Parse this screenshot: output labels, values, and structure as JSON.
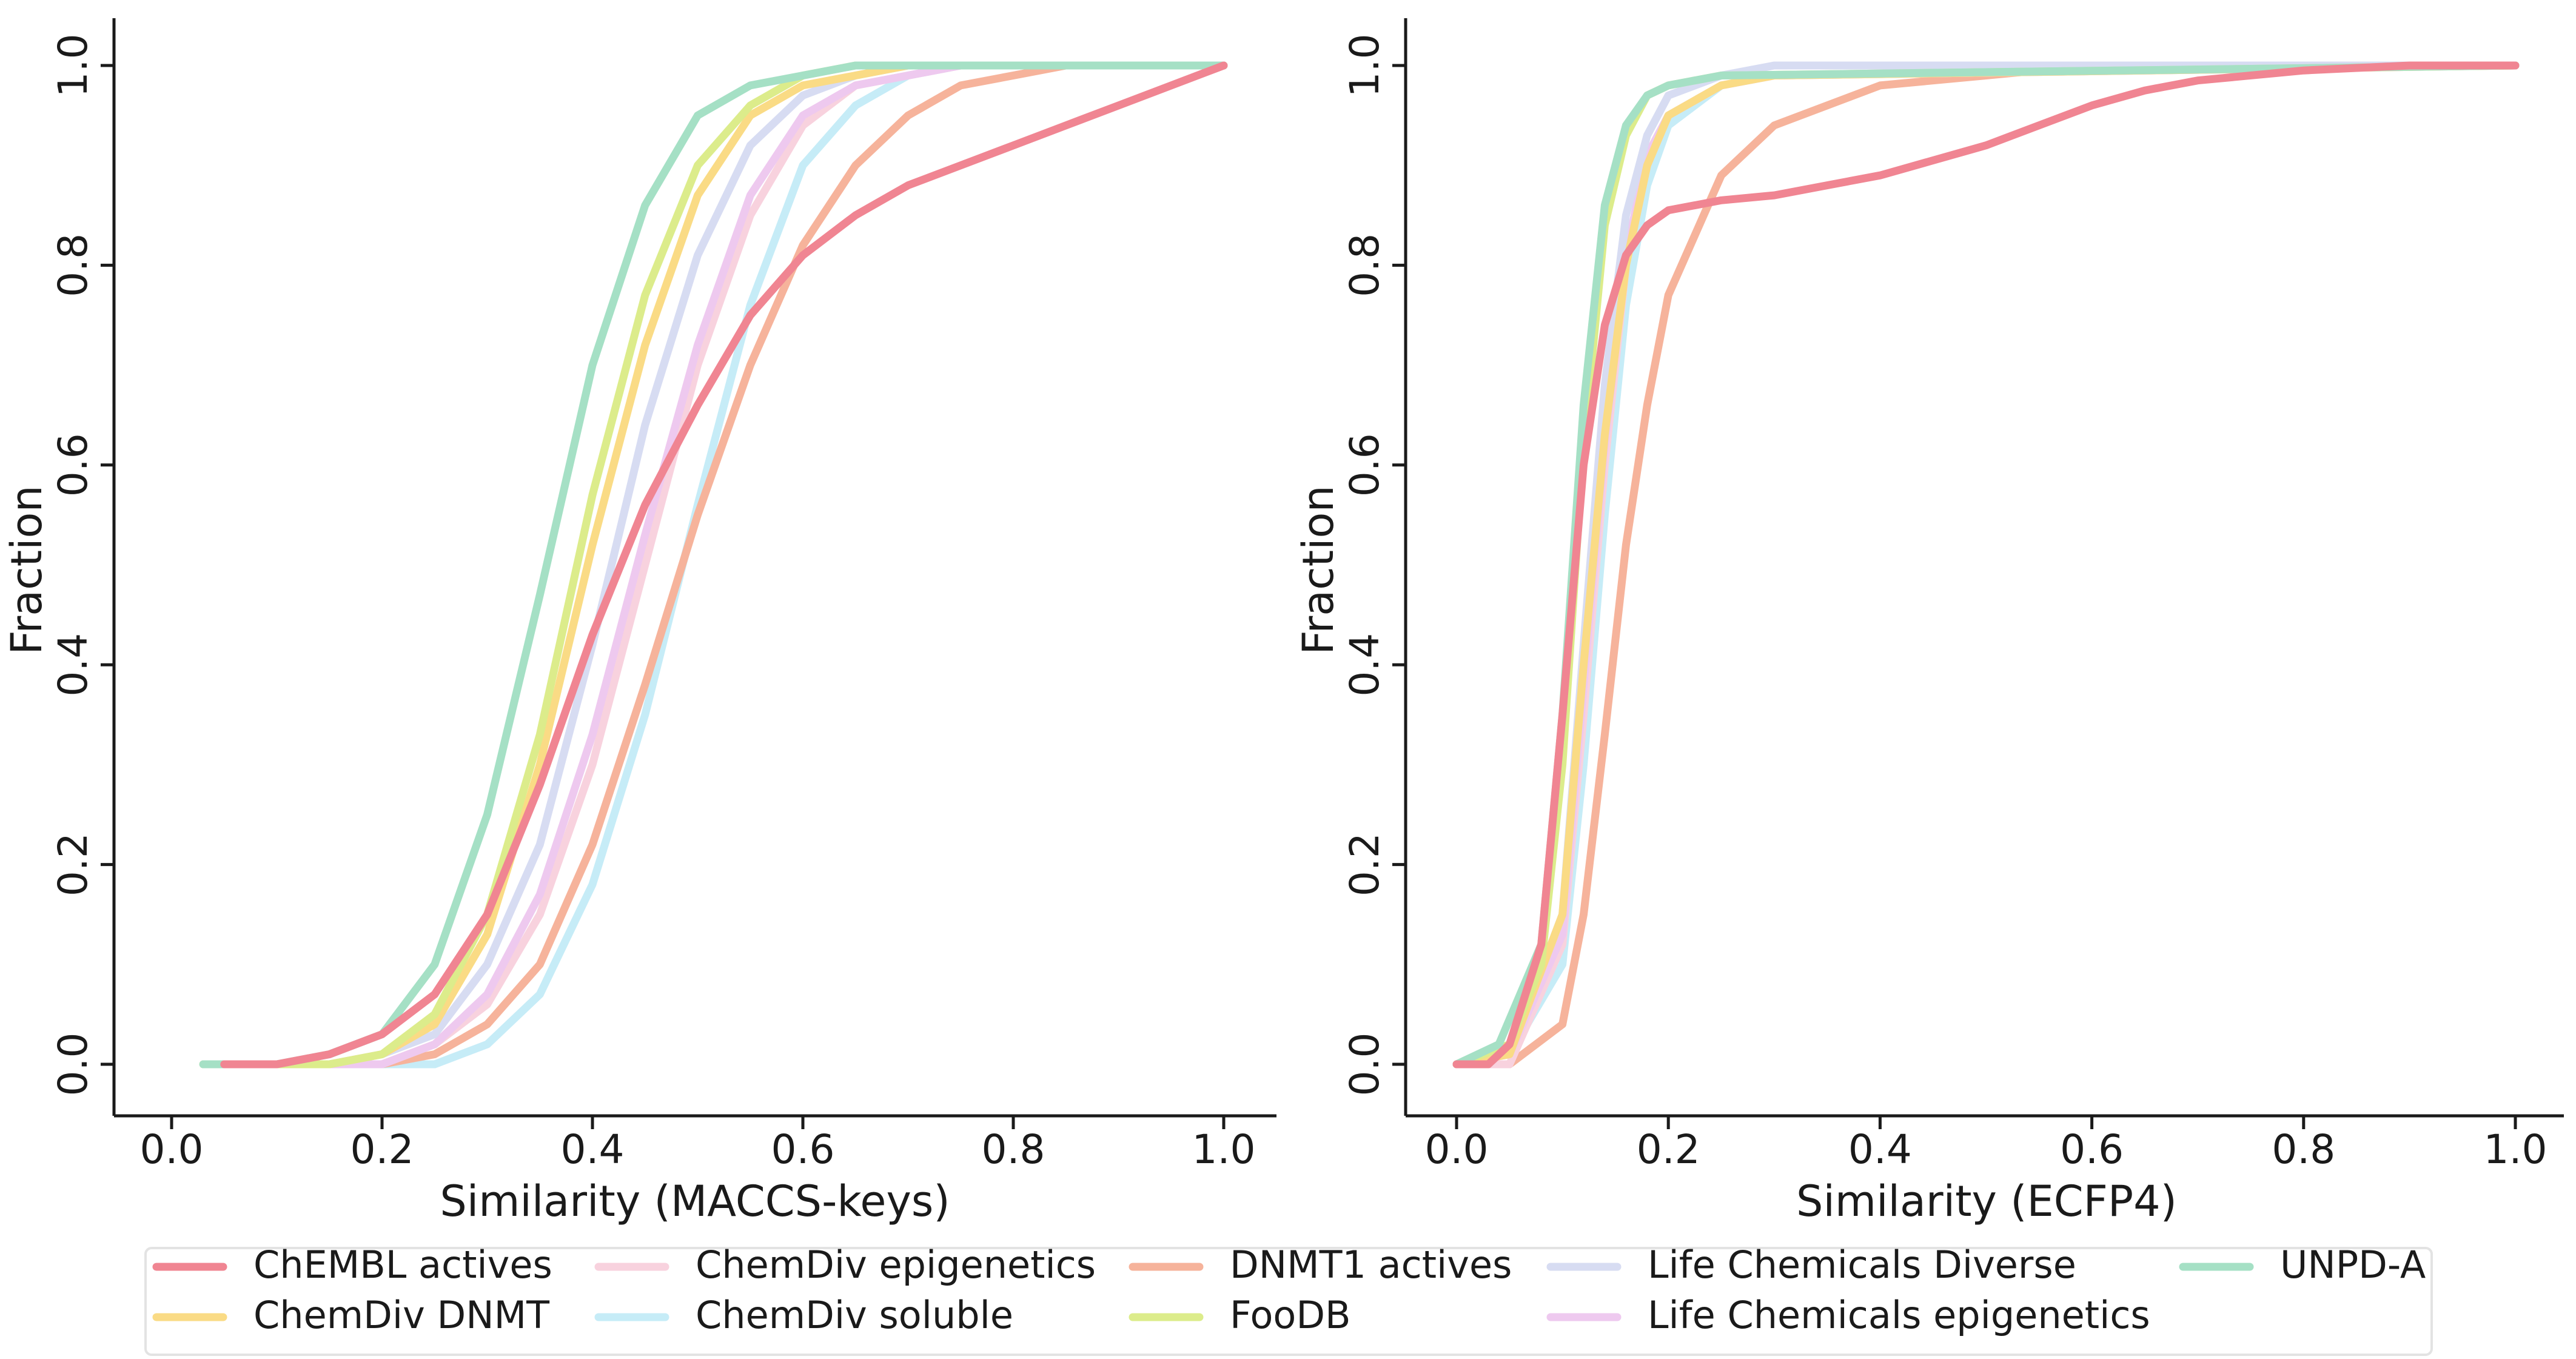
{
  "chart_data": [
    {
      "type": "line",
      "title": "",
      "xlabel": "Similarity (MACCS-keys)",
      "ylabel": "Fraction",
      "xlim": [
        0.0,
        1.0
      ],
      "ylim": [
        0.0,
        1.0
      ],
      "xticks": [
        "0.0",
        "0.2",
        "0.4",
        "0.6",
        "0.8",
        "1.0"
      ],
      "yticks": [
        "0.0",
        "0.2",
        "0.4",
        "0.6",
        "0.8",
        "1.0"
      ],
      "grid": false,
      "series": [
        {
          "name": "ChemDiv soluble",
          "color": "#c6ecf7",
          "x": [
            0.15,
            0.25,
            0.3,
            0.35,
            0.4,
            0.45,
            0.5,
            0.55,
            0.6,
            0.65,
            0.7,
            0.75,
            0.8,
            1.0
          ],
          "y": [
            0.0,
            0.0,
            0.02,
            0.07,
            0.18,
            0.35,
            0.56,
            0.76,
            0.9,
            0.96,
            0.99,
            1.0,
            1.0,
            1.0
          ]
        },
        {
          "name": "DNMT1 actives",
          "color": "#f6b39b",
          "x": [
            0.15,
            0.2,
            0.25,
            0.3,
            0.35,
            0.4,
            0.45,
            0.5,
            0.55,
            0.6,
            0.65,
            0.7,
            0.75,
            0.8,
            0.85,
            1.0
          ],
          "y": [
            0.0,
            0.0,
            0.01,
            0.04,
            0.1,
            0.22,
            0.38,
            0.55,
            0.7,
            0.82,
            0.9,
            0.95,
            0.98,
            0.99,
            1.0,
            1.0
          ]
        },
        {
          "name": "ChemDiv epigenetics",
          "color": "#f8d2de",
          "x": [
            0.15,
            0.2,
            0.25,
            0.3,
            0.35,
            0.4,
            0.45,
            0.5,
            0.55,
            0.6,
            0.65,
            0.7,
            0.75,
            1.0
          ],
          "y": [
            0.0,
            0.0,
            0.02,
            0.06,
            0.15,
            0.3,
            0.5,
            0.7,
            0.85,
            0.94,
            0.98,
            0.99,
            1.0,
            1.0
          ]
        },
        {
          "name": "Life Chemicals epigenetics",
          "color": "#eec9ef",
          "x": [
            0.15,
            0.2,
            0.25,
            0.3,
            0.35,
            0.4,
            0.45,
            0.5,
            0.55,
            0.6,
            0.65,
            0.7,
            0.75,
            1.0
          ],
          "y": [
            0.0,
            0.0,
            0.02,
            0.07,
            0.17,
            0.33,
            0.53,
            0.72,
            0.87,
            0.95,
            0.98,
            0.99,
            1.0,
            1.0
          ]
        },
        {
          "name": "Life Chemicals Diverse",
          "color": "#d7dcf2",
          "x": [
            0.15,
            0.2,
            0.25,
            0.3,
            0.35,
            0.4,
            0.45,
            0.5,
            0.55,
            0.6,
            0.65,
            0.7,
            1.0
          ],
          "y": [
            0.0,
            0.01,
            0.03,
            0.1,
            0.22,
            0.42,
            0.64,
            0.81,
            0.92,
            0.97,
            0.99,
            1.0,
            1.0
          ]
        },
        {
          "name": "ChemDiv DNMT",
          "color": "#fadb85",
          "x": [
            0.15,
            0.2,
            0.25,
            0.3,
            0.35,
            0.4,
            0.45,
            0.5,
            0.55,
            0.6,
            0.65,
            0.7,
            1.0
          ],
          "y": [
            0.0,
            0.01,
            0.04,
            0.13,
            0.3,
            0.52,
            0.72,
            0.87,
            0.95,
            0.98,
            0.99,
            1.0,
            1.0
          ]
        },
        {
          "name": "FooDB",
          "color": "#dcec8b",
          "x": [
            0.03,
            0.15,
            0.2,
            0.25,
            0.3,
            0.35,
            0.4,
            0.45,
            0.5,
            0.55,
            0.6,
            0.65,
            0.7,
            1.0
          ],
          "y": [
            0.0,
            0.0,
            0.01,
            0.05,
            0.15,
            0.33,
            0.57,
            0.77,
            0.9,
            0.96,
            0.99,
            1.0,
            1.0,
            1.0
          ]
        },
        {
          "name": "UNPD-A",
          "color": "#a5e0c5",
          "x": [
            0.03,
            0.1,
            0.15,
            0.2,
            0.25,
            0.3,
            0.35,
            0.4,
            0.45,
            0.5,
            0.55,
            0.6,
            0.65,
            0.7,
            1.0
          ],
          "y": [
            0.0,
            0.0,
            0.01,
            0.03,
            0.1,
            0.25,
            0.47,
            0.7,
            0.86,
            0.95,
            0.98,
            0.99,
            1.0,
            1.0,
            1.0
          ]
        },
        {
          "name": "ChEMBL actives",
          "color": "#f08592",
          "x": [
            0.05,
            0.1,
            0.15,
            0.2,
            0.25,
            0.3,
            0.35,
            0.4,
            0.45,
            0.5,
            0.55,
            0.6,
            0.65,
            0.7,
            0.75,
            0.8,
            0.85,
            0.9,
            0.95,
            1.0
          ],
          "y": [
            0.0,
            0.0,
            0.01,
            0.03,
            0.07,
            0.15,
            0.28,
            0.43,
            0.56,
            0.66,
            0.75,
            0.81,
            0.85,
            0.88,
            0.9,
            0.92,
            0.94,
            0.96,
            0.98,
            1.0
          ]
        }
      ]
    },
    {
      "type": "line",
      "title": "",
      "xlabel": "Similarity (ECFP4)",
      "ylabel": "Fraction",
      "xlim": [
        0.0,
        1.0
      ],
      "ylim": [
        0.0,
        1.0
      ],
      "xticks": [
        "0.0",
        "0.2",
        "0.4",
        "0.6",
        "0.8",
        "1.0"
      ],
      "yticks": [
        "0.0",
        "0.2",
        "0.4",
        "0.6",
        "0.8",
        "1.0"
      ],
      "grid": false,
      "series": [
        {
          "name": "DNMT1 actives",
          "color": "#f6b39b",
          "x": [
            0.0,
            0.05,
            0.1,
            0.12,
            0.14,
            0.16,
            0.18,
            0.2,
            0.25,
            0.3,
            0.4,
            0.5,
            0.6,
            1.0
          ],
          "y": [
            0.0,
            0.0,
            0.04,
            0.15,
            0.33,
            0.52,
            0.66,
            0.77,
            0.89,
            0.94,
            0.98,
            0.99,
            1.0,
            1.0
          ]
        },
        {
          "name": "ChemDiv soluble",
          "color": "#c6ecf7",
          "x": [
            0.0,
            0.05,
            0.1,
            0.12,
            0.14,
            0.16,
            0.18,
            0.2,
            0.25,
            0.3,
            1.0
          ],
          "y": [
            0.0,
            0.01,
            0.1,
            0.3,
            0.55,
            0.76,
            0.88,
            0.94,
            0.98,
            0.99,
            1.0
          ]
        },
        {
          "name": "ChemDiv epigenetics",
          "color": "#f8d2de",
          "x": [
            0.0,
            0.05,
            0.1,
            0.12,
            0.14,
            0.16,
            0.18,
            0.2,
            0.25,
            0.3,
            1.0
          ],
          "y": [
            0.0,
            0.0,
            0.12,
            0.35,
            0.6,
            0.8,
            0.9,
            0.95,
            0.98,
            0.99,
            1.0
          ]
        },
        {
          "name": "Life Chemicals epigenetics",
          "color": "#eec9ef",
          "x": [
            0.0,
            0.05,
            0.1,
            0.12,
            0.14,
            0.16,
            0.18,
            0.2,
            0.25,
            0.3,
            1.0
          ],
          "y": [
            0.0,
            0.01,
            0.13,
            0.38,
            0.62,
            0.81,
            0.91,
            0.95,
            0.98,
            0.99,
            1.0
          ]
        },
        {
          "name": "Life Chemicals Diverse",
          "color": "#d7dcf2",
          "x": [
            0.0,
            0.05,
            0.1,
            0.12,
            0.14,
            0.16,
            0.18,
            0.2,
            0.25,
            0.3,
            1.0
          ],
          "y": [
            0.0,
            0.01,
            0.15,
            0.42,
            0.68,
            0.85,
            0.93,
            0.97,
            0.99,
            1.0,
            1.0
          ]
        },
        {
          "name": "ChemDiv DNMT",
          "color": "#fadb85",
          "x": [
            0.0,
            0.05,
            0.1,
            0.12,
            0.14,
            0.16,
            0.18,
            0.2,
            0.25,
            0.3,
            1.0
          ],
          "y": [
            0.0,
            0.01,
            0.15,
            0.4,
            0.63,
            0.8,
            0.9,
            0.95,
            0.98,
            0.99,
            1.0
          ]
        },
        {
          "name": "FooDB",
          "color": "#dcec8b",
          "x": [
            0.0,
            0.05,
            0.08,
            0.1,
            0.12,
            0.14,
            0.16,
            0.18,
            0.2,
            0.25,
            1.0
          ],
          "y": [
            0.0,
            0.02,
            0.1,
            0.3,
            0.62,
            0.84,
            0.93,
            0.97,
            0.98,
            0.99,
            1.0
          ]
        },
        {
          "name": "UNPD-A",
          "color": "#a5e0c5",
          "x": [
            0.0,
            0.04,
            0.08,
            0.1,
            0.12,
            0.14,
            0.16,
            0.18,
            0.2,
            0.25,
            1.0
          ],
          "y": [
            0.0,
            0.02,
            0.12,
            0.35,
            0.66,
            0.86,
            0.94,
            0.97,
            0.98,
            0.99,
            1.0
          ]
        },
        {
          "name": "ChEMBL actives",
          "color": "#f08592",
          "x": [
            0.0,
            0.03,
            0.05,
            0.08,
            0.1,
            0.12,
            0.14,
            0.16,
            0.18,
            0.2,
            0.25,
            0.3,
            0.35,
            0.4,
            0.45,
            0.5,
            0.55,
            0.6,
            0.65,
            0.7,
            0.8,
            0.9,
            1.0
          ],
          "y": [
            0.0,
            0.0,
            0.02,
            0.12,
            0.35,
            0.6,
            0.74,
            0.81,
            0.84,
            0.855,
            0.865,
            0.87,
            0.88,
            0.89,
            0.905,
            0.92,
            0.94,
            0.96,
            0.975,
            0.985,
            0.995,
            1.0,
            1.0
          ]
        }
      ]
    }
  ],
  "legend": {
    "placement": "bottom",
    "entries": [
      {
        "label": "ChEMBL actives",
        "color": "#f08592"
      },
      {
        "label": "ChemDiv DNMT",
        "color": "#fadb85"
      },
      {
        "label": "ChemDiv epigenetics",
        "color": "#f8d2de"
      },
      {
        "label": "ChemDiv soluble",
        "color": "#c6ecf7"
      },
      {
        "label": "DNMT1 actives",
        "color": "#f6b39b"
      },
      {
        "label": "FooDB",
        "color": "#dcec8b"
      },
      {
        "label": "Life Chemicals Diverse",
        "color": "#d7dcf2"
      },
      {
        "label": "Life Chemicals epigenetics",
        "color": "#eec9ef"
      },
      {
        "label": "UNPD-A",
        "color": "#a5e0c5"
      }
    ]
  }
}
